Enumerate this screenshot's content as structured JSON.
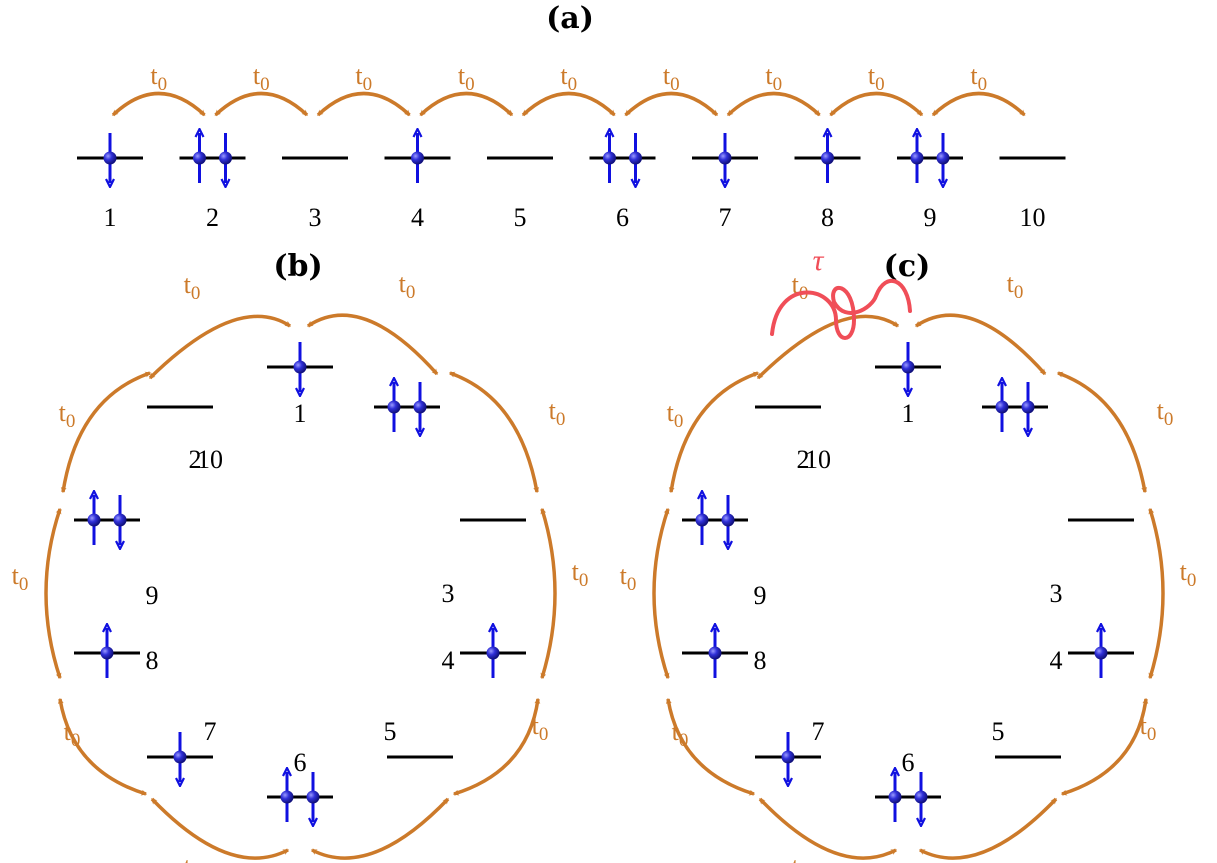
{
  "colors": {
    "hop": "#cc7a2a",
    "spin": "#1010e0",
    "spin_ball": "#2a2ad0",
    "link": "#f04e58",
    "level": "#000000"
  },
  "hopping_label": {
    "base": "t",
    "sub": "0"
  },
  "link_label": "τ",
  "panels": [
    {
      "id": "a",
      "title": "(a)",
      "layout": "chain",
      "sites": [
        {
          "n": "1",
          "spins": [
            "down"
          ]
        },
        {
          "n": "2",
          "spins": [
            "up",
            "down"
          ]
        },
        {
          "n": "3",
          "spins": []
        },
        {
          "n": "4",
          "spins": [
            "up"
          ]
        },
        {
          "n": "5",
          "spins": []
        },
        {
          "n": "6",
          "spins": [
            "up",
            "down"
          ]
        },
        {
          "n": "7",
          "spins": [
            "down"
          ]
        },
        {
          "n": "8",
          "spins": [
            "up"
          ]
        },
        {
          "n": "9",
          "spins": [
            "up",
            "down"
          ]
        },
        {
          "n": "10",
          "spins": []
        }
      ]
    },
    {
      "id": "b",
      "title": "(b)",
      "layout": "ring",
      "broken_link": false,
      "sites": [
        {
          "n": "1",
          "spins": [
            "down"
          ]
        },
        {
          "n": "2",
          "spins": [
            "up",
            "down"
          ]
        },
        {
          "n": "3",
          "spins": []
        },
        {
          "n": "4",
          "spins": [
            "up"
          ]
        },
        {
          "n": "5",
          "spins": []
        },
        {
          "n": "6",
          "spins": [
            "up",
            "down"
          ]
        },
        {
          "n": "7",
          "spins": [
            "down"
          ]
        },
        {
          "n": "8",
          "spins": [
            "up"
          ]
        },
        {
          "n": "9",
          "spins": [
            "up",
            "down"
          ]
        },
        {
          "n": "10",
          "spins": []
        }
      ]
    },
    {
      "id": "c",
      "title": "(c)",
      "layout": "ring",
      "broken_link": true,
      "sites": [
        {
          "n": "1",
          "spins": [
            "down"
          ]
        },
        {
          "n": "2",
          "spins": [
            "up",
            "down"
          ]
        },
        {
          "n": "3",
          "spins": []
        },
        {
          "n": "4",
          "spins": [
            "up"
          ]
        },
        {
          "n": "5",
          "spins": []
        },
        {
          "n": "6",
          "spins": [
            "up",
            "down"
          ]
        },
        {
          "n": "7",
          "spins": [
            "down"
          ]
        },
        {
          "n": "8",
          "spins": [
            "up"
          ]
        },
        {
          "n": "9",
          "spins": [
            "up",
            "down"
          ]
        },
        {
          "n": "10",
          "spins": []
        }
      ]
    }
  ]
}
